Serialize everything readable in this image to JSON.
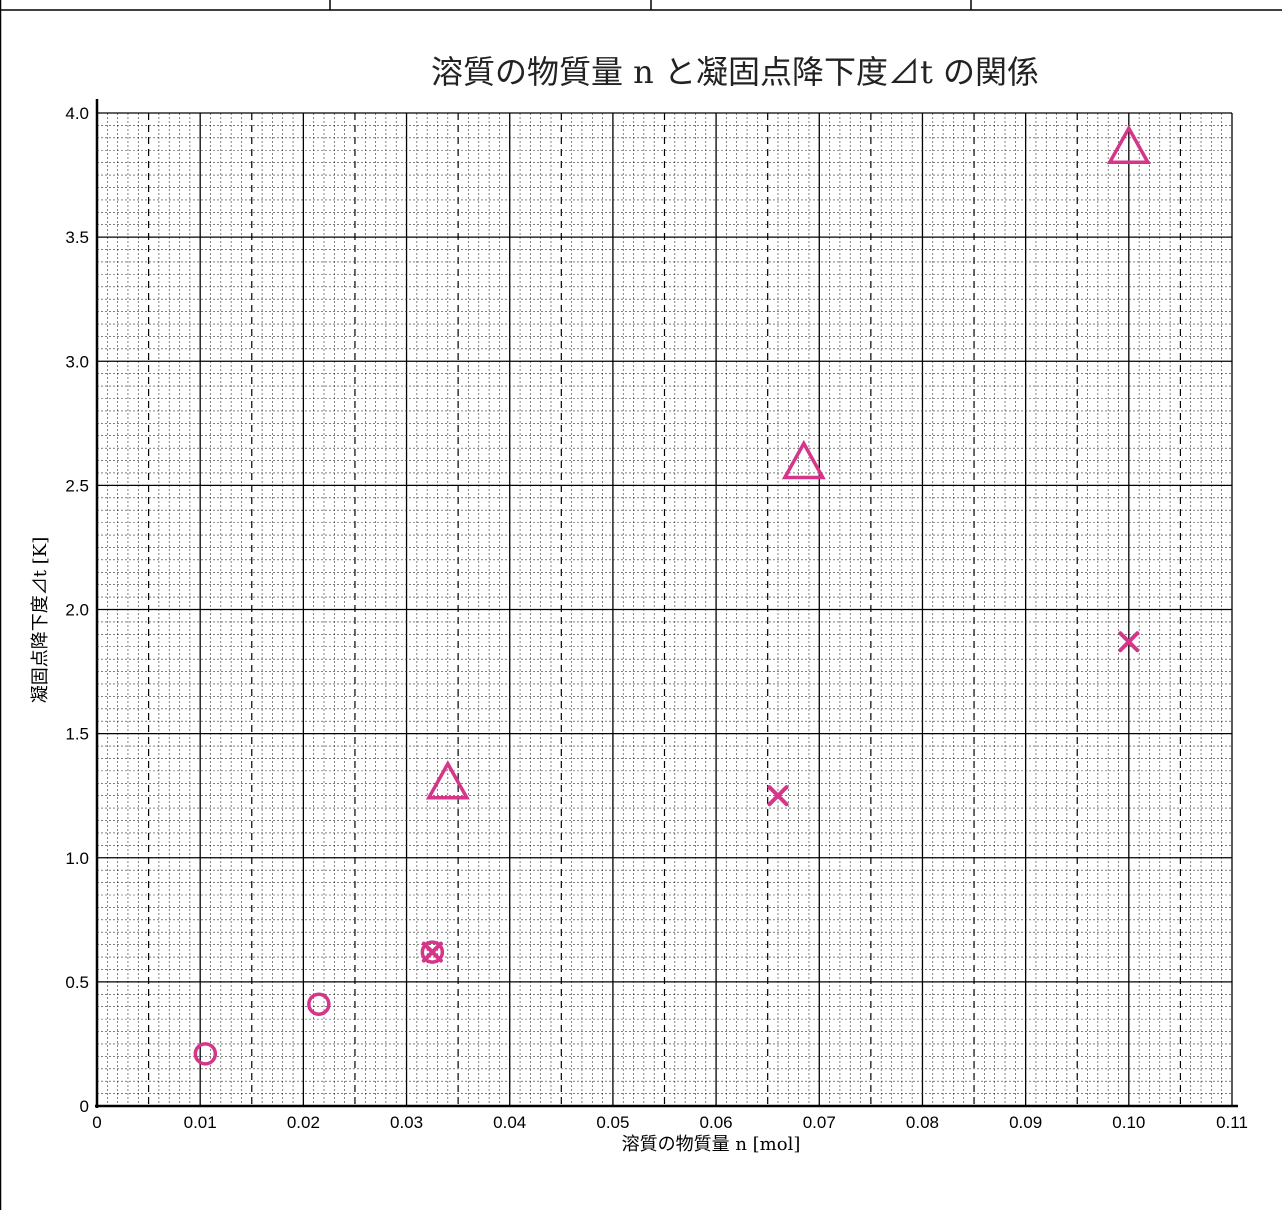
{
  "colors": {
    "marker": "#d6368a",
    "grid": "#000000"
  },
  "chart_data": {
    "type": "scatter",
    "title": "溶質の物質量 n と凝固点降下度⊿t の関係",
    "xlabel": "溶質の物質量 n [mol]",
    "ylabel": "凝固点降下度⊿t [K]",
    "xlim": [
      0,
      0.11
    ],
    "ylim": [
      0,
      4.0
    ],
    "xticks": [
      "0",
      "0.01",
      "0.02",
      "0.03",
      "0.04",
      "0.05",
      "0.06",
      "0.07",
      "0.08",
      "0.09",
      "0.10",
      "0.11"
    ],
    "yticks": [
      "0",
      "0.5",
      "1.0",
      "1.5",
      "2.0",
      "2.5",
      "3.0",
      "3.5",
      "4.0"
    ],
    "grid": true,
    "series": [
      {
        "marker": "circle",
        "points": [
          {
            "x": 0.0105,
            "y": 0.21
          },
          {
            "x": 0.0215,
            "y": 0.41
          },
          {
            "x": 0.0325,
            "y": 0.62
          }
        ]
      },
      {
        "marker": "cross",
        "points": [
          {
            "x": 0.0325,
            "y": 0.62
          },
          {
            "x": 0.066,
            "y": 1.25
          },
          {
            "x": 0.1,
            "y": 1.87
          }
        ]
      },
      {
        "marker": "triangle",
        "points": [
          {
            "x": 0.034,
            "y": 1.29
          },
          {
            "x": 0.0685,
            "y": 2.58
          },
          {
            "x": 0.1,
            "y": 3.85
          }
        ]
      }
    ]
  }
}
